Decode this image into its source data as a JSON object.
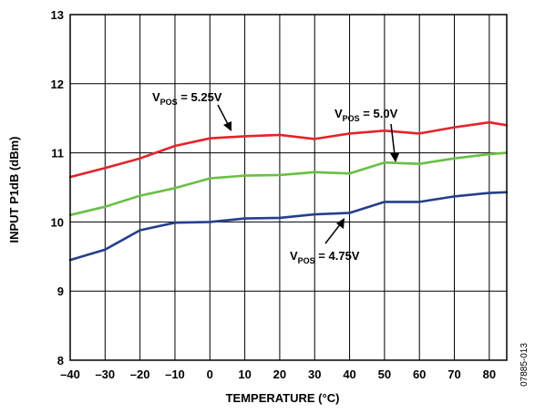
{
  "figure_id": "07885-013",
  "chart_data": {
    "type": "line",
    "xlabel": "TEMPERATURE (°C)",
    "ylabel": "INPUT P1dB (dBm)",
    "xlim": [
      -40,
      85
    ],
    "ylim": [
      8,
      13
    ],
    "xticks": [
      -40,
      -30,
      -20,
      -10,
      0,
      10,
      20,
      30,
      40,
      50,
      60,
      70,
      80
    ],
    "yticks": [
      8,
      9,
      10,
      11,
      12,
      13
    ],
    "x_tick_labels": [
      "–40",
      "–30",
      "–20",
      "–10",
      "0",
      "10",
      "20",
      "30",
      "40",
      "50",
      "60",
      "70",
      "80"
    ],
    "y_tick_labels": [
      "8",
      "9",
      "10",
      "11",
      "12",
      "13"
    ],
    "grid": true,
    "x": [
      -40,
      -30,
      -20,
      -10,
      0,
      10,
      20,
      30,
      40,
      50,
      60,
      70,
      80,
      85
    ],
    "series": [
      {
        "name": "V_POS = 5.25V",
        "color": "#e3242b",
        "values": [
          10.65,
          10.78,
          10.92,
          11.1,
          11.21,
          11.24,
          11.26,
          11.2,
          11.28,
          11.32,
          11.28,
          11.37,
          11.44,
          11.4
        ]
      },
      {
        "name": "V_POS = 5.0V",
        "color": "#6abf45",
        "values": [
          10.1,
          10.22,
          10.38,
          10.49,
          10.63,
          10.67,
          10.68,
          10.72,
          10.7,
          10.86,
          10.84,
          10.92,
          10.98,
          11.0
        ]
      },
      {
        "name": "V_POS = 4.75V",
        "color": "#253f8c",
        "values": [
          9.45,
          9.6,
          9.88,
          9.99,
          10.0,
          10.05,
          10.06,
          10.11,
          10.13,
          10.29,
          10.29,
          10.37,
          10.42,
          10.43
        ]
      }
    ],
    "annotations": [
      {
        "main": "V",
        "sub": "POS",
        "rest": " = 5.25V",
        "series": 0
      },
      {
        "main": "V",
        "sub": "POS",
        "rest": " = 5.0V",
        "series": 1
      },
      {
        "main": "V",
        "sub": "POS",
        "rest": " = 4.75V",
        "series": 2
      }
    ]
  }
}
